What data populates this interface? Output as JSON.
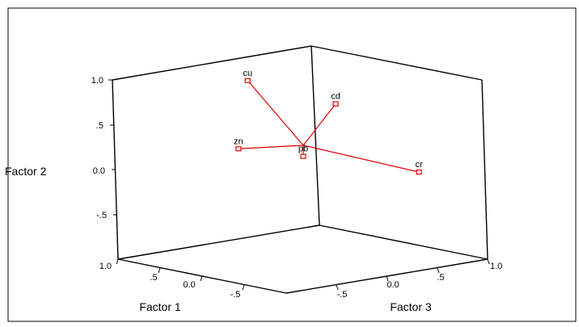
{
  "chart_data": {
    "type": "scatter",
    "projection": "3d",
    "title": "",
    "axes": {
      "factor1": {
        "label": "Factor 1",
        "ticks": [
          {
            "value": 1.0,
            "label": "1.0"
          },
          {
            "value": 0.5,
            "label": ".5"
          },
          {
            "value": 0.0,
            "label": "0.0"
          },
          {
            "value": -0.5,
            "label": "-.5"
          }
        ]
      },
      "factor2": {
        "label": "Factor 2",
        "ticks": [
          {
            "value": 1.0,
            "label": "1.0"
          },
          {
            "value": 0.5,
            "label": ".5"
          },
          {
            "value": 0.0,
            "label": "0.0"
          },
          {
            "value": -0.5,
            "label": "-.5"
          }
        ]
      },
      "factor3": {
        "label": "Factor 3",
        "ticks": [
          {
            "value": -0.5,
            "label": "-.5"
          },
          {
            "value": 0.0,
            "label": "0.0"
          },
          {
            "value": 0.5,
            "label": ".5"
          },
          {
            "value": 1.0,
            "label": "1.0"
          }
        ]
      }
    },
    "points": [
      {
        "label": "cu",
        "factor1": 0.0,
        "factor2": 0.95,
        "factor3": -0.6
      },
      {
        "label": "cd",
        "factor1": -0.35,
        "factor2": 0.78,
        "factor3": 0.0
      },
      {
        "label": "pb",
        "factor1": -0.05,
        "factor2": 0.15,
        "factor3": -0.05
      },
      {
        "label": "zn",
        "factor1": 0.5,
        "factor2": 0.15,
        "factor3": -0.2
      },
      {
        "label": "cr",
        "factor1": -0.6,
        "factor2": 0.1,
        "factor3": 0.65
      }
    ],
    "spikes_to_origin": true,
    "grid": false
  }
}
